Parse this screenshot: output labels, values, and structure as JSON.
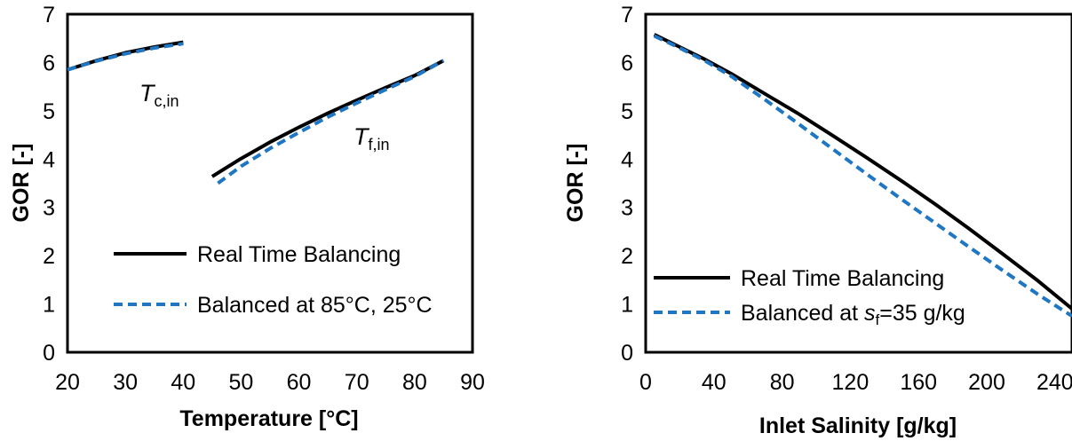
{
  "colors": {
    "real_time": "#000000",
    "balanced": "#1f77c4"
  },
  "chart_data": [
    {
      "type": "line",
      "xlabel": "Temperature [°C]",
      "ylabel": "GOR [-]",
      "xlim": [
        20,
        90
      ],
      "ylim": [
        0,
        7
      ],
      "xticks": [
        "20",
        "30",
        "40",
        "50",
        "60",
        "70",
        "80",
        "90"
      ],
      "yticks": [
        "0",
        "1",
        "2",
        "3",
        "4",
        "5",
        "6",
        "7"
      ],
      "grid": false,
      "legend_position": "bottom",
      "legend": [
        "Real Time Balancing",
        "Balanced at 85°C, 25°C"
      ],
      "annotations": [
        {
          "italic": "T",
          "sub": "c,in",
          "x": 28,
          "y": 5.45
        },
        {
          "italic": "T",
          "sub": "f,in",
          "x": 66,
          "y": 4.05
        }
      ],
      "series": [
        {
          "name": "Real Time Balancing",
          "group": "Tc,in",
          "style": "solid",
          "x": [
            20,
            25,
            30,
            35,
            40
          ],
          "y": [
            5.85,
            6.04,
            6.2,
            6.32,
            6.42
          ]
        },
        {
          "name": "Balanced at 85°C, 25°C",
          "group": "Tc,in",
          "style": "dashed",
          "x": [
            20,
            25,
            30,
            35,
            40
          ],
          "y": [
            5.85,
            6.03,
            6.18,
            6.3,
            6.39
          ]
        },
        {
          "name": "Real Time Balancing",
          "group": "Tf,in",
          "style": "solid",
          "x": [
            45,
            50,
            55,
            60,
            65,
            70,
            75,
            80,
            85
          ],
          "y": [
            3.64,
            4.01,
            4.35,
            4.66,
            4.95,
            5.22,
            5.48,
            5.73,
            6.04
          ]
        },
        {
          "name": "Balanced at 85°C, 25°C",
          "group": "Tf,in",
          "style": "dashed",
          "x": [
            46,
            50,
            55,
            60,
            65,
            70,
            75,
            80,
            85
          ],
          "y": [
            3.5,
            3.85,
            4.22,
            4.55,
            4.87,
            5.16,
            5.44,
            5.71,
            6.04
          ]
        }
      ]
    },
    {
      "type": "line",
      "xlabel": "Inlet Salinity [g/kg]",
      "ylabel": "GOR [-]",
      "xlim": [
        0,
        250
      ],
      "ylim": [
        0,
        7
      ],
      "xticks": [
        "0",
        "40",
        "80",
        "120",
        "160",
        "200",
        "240"
      ],
      "yticks": [
        "0",
        "1",
        "2",
        "3",
        "4",
        "5",
        "6",
        "7"
      ],
      "grid": false,
      "legend_position": "bottom",
      "legend_prefix": "Balanced at ",
      "legend_italic": "s",
      "legend_sub": "f",
      "legend_suffix": "=35 g/kg",
      "legend": [
        "Real Time Balancing",
        "Balanced at sf=35 g/kg"
      ],
      "series": [
        {
          "name": "Real Time Balancing",
          "style": "solid",
          "x": [
            5,
            20,
            35,
            50,
            70,
            90,
            110,
            130,
            150,
            170,
            190,
            210,
            230,
            250
          ],
          "y": [
            6.58,
            6.32,
            6.06,
            5.77,
            5.35,
            4.93,
            4.48,
            4.02,
            3.55,
            3.06,
            2.55,
            2.02,
            1.48,
            0.9
          ]
        },
        {
          "name": "Balanced at sf=35 g/kg",
          "style": "dashed",
          "x": [
            5,
            20,
            35,
            50,
            70,
            90,
            110,
            130,
            150,
            170,
            190,
            210,
            230,
            250
          ],
          "y": [
            6.55,
            6.3,
            6.03,
            5.72,
            5.23,
            4.72,
            4.2,
            3.68,
            3.17,
            2.67,
            2.17,
            1.68,
            1.2,
            0.75
          ]
        }
      ]
    }
  ]
}
